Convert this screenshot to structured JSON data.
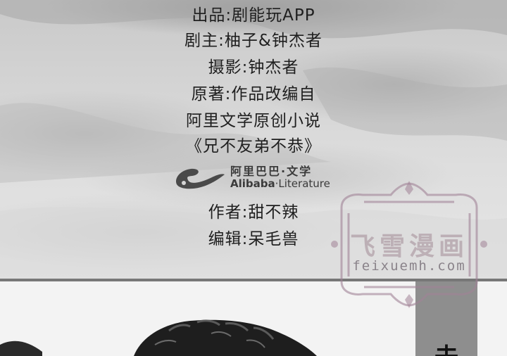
{
  "credits": {
    "producer": "出品:剧能玩APP",
    "screenwriter": "剧主:柚子&钟杰者",
    "photography": "摄影:钟杰者",
    "original_note": "原著:作品改编自",
    "source_platform": "阿里文学原创小说",
    "novel_title": "《兄不友弟不恭》",
    "author": "作者:甜不辣",
    "editor": "编辑:呆毛兽"
  },
  "logo": {
    "name_cn": "阿里巴巴·文学",
    "name_en_bold": "Alibaba",
    "name_en_rest": "·Literature",
    "icon": "alibaba-logo-icon"
  },
  "watermark": {
    "title": "飞雪漫画",
    "url": "feixuemh.com"
  },
  "photo": {
    "tab_char": "去"
  },
  "colors": {
    "text": "#1f1f1f",
    "panel": "#d6d6d6",
    "watermark": "#aa96a0"
  }
}
